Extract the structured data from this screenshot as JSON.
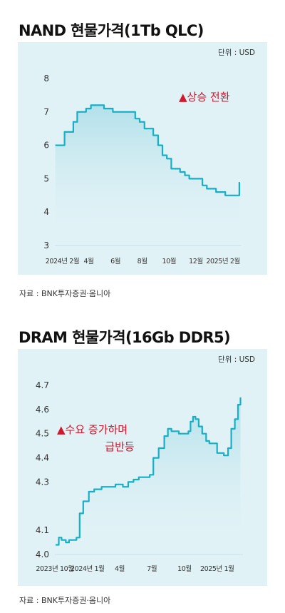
{
  "charts": [
    {
      "title": "NAND 현물가격(1Tb QLC)",
      "unit": "단위 : USD",
      "annotation": "▲상승 전환",
      "source": "자료 : BNK투자증권·옴니아",
      "annotation_color": "#d0172b",
      "line_color": "#17aec7"
    },
    {
      "title": "DRAM 현물가격(16Gb DDR5)",
      "unit": "단위 : USD",
      "annotation": "▲수요 증가하며 급반등",
      "annotation_line1": "▲수요 증가하며",
      "annotation_line2": "급반등",
      "source": "자료 : BNK투자증권·옴니아",
      "annotation_color": "#d0172b",
      "line_color": "#17aec7"
    }
  ],
  "chart_data": [
    {
      "type": "line",
      "title": "NAND 현물가격(1Tb QLC)",
      "ylabel": "단위 : USD",
      "ylim": [
        3,
        8
      ],
      "yticks": [
        3,
        4,
        5,
        6,
        7,
        8
      ],
      "xlim": [
        "2024-01-15",
        "2025-03-15"
      ],
      "xtick_labels": [
        {
          "label": "2024년 2월",
          "date": "2024-02-01"
        },
        {
          "label": "4월",
          "date": "2024-04-01"
        },
        {
          "label": "6월",
          "date": "2024-06-01"
        },
        {
          "label": "8월",
          "date": "2024-08-01"
        },
        {
          "label": "10월",
          "date": "2024-10-01"
        },
        {
          "label": "12월",
          "date": "2024-12-01"
        },
        {
          "label": "2025년 2월",
          "date": "2025-02-01"
        }
      ],
      "grid": false,
      "series": [
        {
          "x": [
            "2024-01-16",
            "2024-01-26",
            "2024-02-06",
            "2024-02-16",
            "2024-02-26",
            "2024-03-06",
            "2024-03-16",
            "2024-03-26",
            "2024-04-06",
            "2024-04-16",
            "2024-04-26",
            "2024-05-06",
            "2024-05-16",
            "2024-05-26",
            "2024-06-06",
            "2024-06-16",
            "2024-06-26",
            "2024-07-06",
            "2024-07-16",
            "2024-07-26",
            "2024-08-06",
            "2024-08-16",
            "2024-08-26",
            "2024-09-06",
            "2024-09-16",
            "2024-09-26",
            "2024-10-06",
            "2024-10-16",
            "2024-10-26",
            "2024-11-06",
            "2024-11-16",
            "2024-11-26",
            "2024-12-06",
            "2024-12-16",
            "2024-12-26",
            "2025-01-06",
            "2025-01-16",
            "2025-01-26",
            "2025-02-06",
            "2025-02-16",
            "2025-02-26",
            "2025-03-06",
            "2025-03-10"
          ],
          "y": [
            6.0,
            6.0,
            6.4,
            6.4,
            6.7,
            7.0,
            7.0,
            7.1,
            7.2,
            7.2,
            7.2,
            7.1,
            7.1,
            7.0,
            7.0,
            7.0,
            7.0,
            7.0,
            6.8,
            6.7,
            6.5,
            6.5,
            6.3,
            6.0,
            5.7,
            5.6,
            5.3,
            5.3,
            5.2,
            5.1,
            5.0,
            5.0,
            5.0,
            4.8,
            4.7,
            4.7,
            4.6,
            4.6,
            4.5,
            4.5,
            4.5,
            4.5,
            4.9
          ]
        }
      ],
      "annotations": [
        "▲상승 전환"
      ]
    },
    {
      "type": "line",
      "title": "DRAM 현물가격(16Gb DDR5)",
      "ylabel": "단위 : USD",
      "ylim": [
        4.0,
        4.7
      ],
      "yticks": [
        4.0,
        4.1,
        4.2,
        4.3,
        4.4,
        4.5,
        4.6,
        4.7
      ],
      "ytick_labels": [
        "4.0",
        "4.1",
        "",
        "4.3",
        "4.4",
        "4.5",
        "4.6",
        "4.7"
      ],
      "xlim": [
        "2023-10-01",
        "2025-03-15"
      ],
      "xtick_labels": [
        {
          "label": "2023년 10월",
          "date": "2023-10-01"
        },
        {
          "label": "2024년 1월",
          "date": "2024-01-01"
        },
        {
          "label": "4월",
          "date": "2024-04-01"
        },
        {
          "label": "7월",
          "date": "2024-07-01"
        },
        {
          "label": "10월",
          "date": "2024-10-01"
        },
        {
          "label": "2025년 1월",
          "date": "2025-01-01"
        }
      ],
      "grid": false,
      "series": [
        {
          "x": [
            "2023-10-03",
            "2023-10-12",
            "2023-10-20",
            "2023-11-01",
            "2023-11-10",
            "2023-11-20",
            "2023-12-01",
            "2023-12-10",
            "2023-12-20",
            "2024-01-05",
            "2024-01-20",
            "2024-02-10",
            "2024-03-01",
            "2024-03-20",
            "2024-04-10",
            "2024-04-25",
            "2024-05-10",
            "2024-05-25",
            "2024-06-10",
            "2024-06-25",
            "2024-07-05",
            "2024-07-20",
            "2024-08-05",
            "2024-08-15",
            "2024-08-25",
            "2024-09-05",
            "2024-09-15",
            "2024-09-25",
            "2024-10-05",
            "2024-10-12",
            "2024-10-18",
            "2024-10-25",
            "2024-11-01",
            "2024-11-10",
            "2024-11-20",
            "2024-12-01",
            "2024-12-10",
            "2024-12-20",
            "2025-01-01",
            "2025-01-10",
            "2025-01-20",
            "2025-02-01",
            "2025-02-10",
            "2025-02-20",
            "2025-03-01",
            "2025-03-08"
          ],
          "y": [
            4.04,
            4.07,
            4.06,
            4.05,
            4.06,
            4.06,
            4.07,
            4.17,
            4.22,
            4.26,
            4.27,
            4.28,
            4.28,
            4.29,
            4.28,
            4.3,
            4.31,
            4.32,
            4.32,
            4.33,
            4.4,
            4.44,
            4.49,
            4.52,
            4.51,
            4.51,
            4.5,
            4.5,
            4.5,
            4.51,
            4.55,
            4.57,
            4.56,
            4.53,
            4.5,
            4.47,
            4.46,
            4.46,
            4.42,
            4.42,
            4.41,
            4.44,
            4.52,
            4.56,
            4.62,
            4.65
          ]
        }
      ],
      "annotations": [
        "▲수요 증가하며 급반등"
      ]
    }
  ]
}
